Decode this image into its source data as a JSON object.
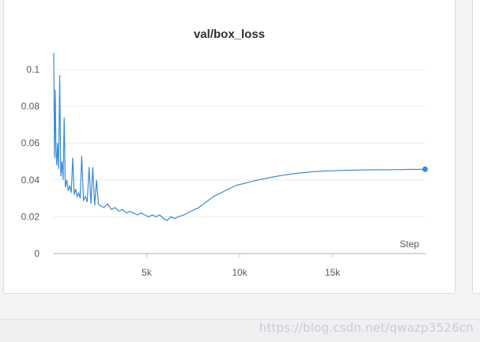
{
  "chart_data": {
    "type": "line",
    "title": "val/box_loss",
    "xlabel": "Step",
    "ylabel": "",
    "xlim": [
      0,
      20000
    ],
    "ylim": [
      0,
      0.1
    ],
    "x_ticks": [
      5000,
      10000,
      15000
    ],
    "x_tick_labels": [
      "5k",
      "10k",
      "15k"
    ],
    "y_ticks": [
      0,
      0.02,
      0.04,
      0.06,
      0.08,
      0.1
    ],
    "y_tick_labels": [
      "0",
      "0.02",
      "0.04",
      "0.06",
      "0.08",
      "0.1"
    ],
    "grid": true,
    "series": [
      {
        "color": "#3a8bd6",
        "x": [
          0,
          40,
          80,
          120,
          160,
          200,
          260,
          320,
          380,
          440,
          500,
          560,
          620,
          700,
          780,
          860,
          940,
          1020,
          1100,
          1180,
          1260,
          1340,
          1420,
          1500,
          1600,
          1700,
          1800,
          1900,
          2000,
          2100,
          2200,
          2300,
          2400,
          2500,
          2700,
          2900,
          3100,
          3300,
          3500,
          3700,
          3900,
          4100,
          4300,
          4500,
          4700,
          4900,
          5100,
          5300,
          5500,
          5700,
          5900,
          6100,
          6300,
          6500,
          6700,
          7000,
          7400,
          7800,
          8200,
          8600,
          9000,
          9400,
          9800,
          10200,
          10600,
          11000,
          11500,
          12000,
          12500,
          13000,
          13500,
          14000,
          14500,
          15000,
          15500,
          16000,
          16500,
          17000,
          17500,
          18000,
          18500,
          19000,
          19500,
          19980
        ],
        "y": [
          0.109,
          0.052,
          0.089,
          0.055,
          0.048,
          0.06,
          0.046,
          0.097,
          0.042,
          0.05,
          0.04,
          0.074,
          0.036,
          0.04,
          0.034,
          0.037,
          0.033,
          0.052,
          0.032,
          0.035,
          0.031,
          0.033,
          0.03,
          0.053,
          0.029,
          0.031,
          0.028,
          0.047,
          0.027,
          0.047,
          0.026,
          0.04,
          0.027,
          0.026,
          0.025,
          0.027,
          0.024,
          0.025,
          0.023,
          0.024,
          0.022,
          0.023,
          0.022,
          0.021,
          0.022,
          0.021,
          0.02,
          0.021,
          0.02,
          0.021,
          0.019,
          0.018,
          0.02,
          0.019,
          0.02,
          0.021,
          0.023,
          0.025,
          0.028,
          0.031,
          0.033,
          0.035,
          0.037,
          0.038,
          0.039,
          0.04,
          0.041,
          0.042,
          0.0428,
          0.0435,
          0.044,
          0.0445,
          0.0448,
          0.045,
          0.0452,
          0.0453,
          0.0454,
          0.0455,
          0.0455,
          0.0456,
          0.0456,
          0.0457,
          0.0457,
          0.0458
        ]
      }
    ]
  },
  "watermark": "https://blog.csdn.net/qwazp3526cn",
  "colors": {
    "line": "#3a8bd6",
    "grid": "#ececec",
    "axis": "#c8c8c8",
    "text": "#555a60",
    "title": "#2c2f33"
  }
}
